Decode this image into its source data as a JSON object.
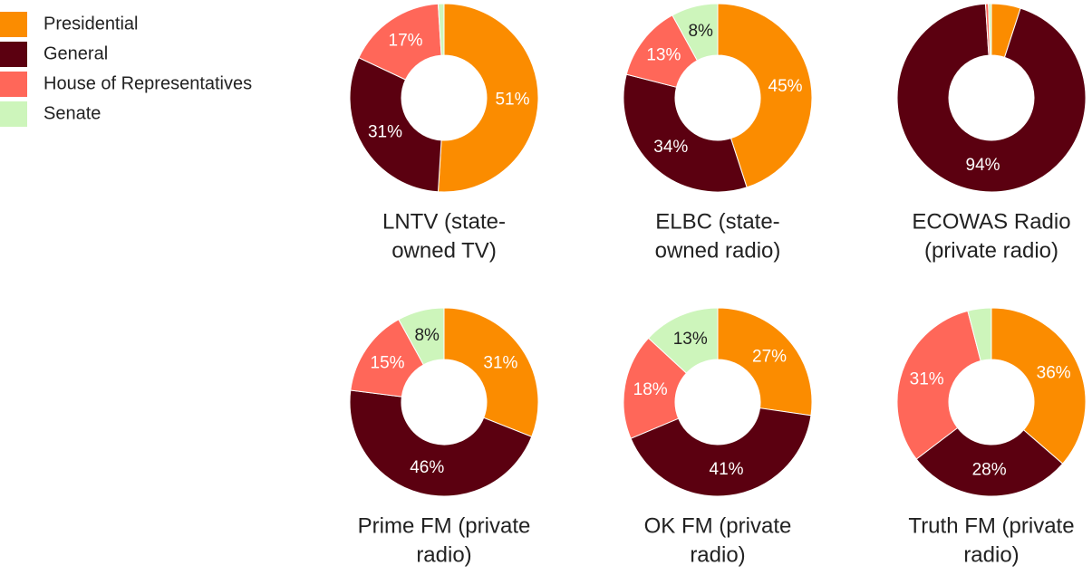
{
  "chart_data": [
    {
      "type": "donut",
      "title": [
        "LNTV (state-",
        "owned TV)"
      ],
      "categories": [
        "Presidential",
        "General",
        "House of Representatives",
        "Senate"
      ],
      "colors": [
        "#fb8c00",
        "#5b0010",
        "#ff6759",
        "#cdf5bb"
      ],
      "values": [
        51,
        31,
        17,
        1
      ],
      "value_labels": [
        "51%",
        "31%",
        "17%",
        null
      ]
    },
    {
      "type": "donut",
      "title": [
        "ELBC (state-",
        "owned radio)"
      ],
      "values": [
        45,
        34,
        13,
        8
      ],
      "value_labels": [
        "45%",
        "34%",
        "13%",
        "8%"
      ]
    },
    {
      "type": "donut",
      "title": [
        "ECOWAS Radio",
        "(private radio)"
      ],
      "values": [
        5,
        94,
        0.5,
        0.5
      ],
      "value_labels": [
        null,
        "94%",
        null,
        null
      ]
    },
    {
      "type": "donut",
      "title": [
        "Prime FM (private",
        "radio)"
      ],
      "values": [
        31,
        46,
        15,
        8
      ],
      "value_labels": [
        "31%",
        "46%",
        "15%",
        "8%"
      ]
    },
    {
      "type": "donut",
      "title": [
        "OK FM (private",
        "radio)"
      ],
      "values": [
        27,
        41,
        18,
        13
      ],
      "value_labels": [
        "27%",
        "41%",
        "18%",
        "13%"
      ]
    },
    {
      "type": "donut",
      "title": [
        "Truth FM (private",
        "radio)"
      ],
      "values": [
        36,
        28,
        31,
        4
      ],
      "value_labels": [
        "36%",
        "28%",
        "31%",
        null
      ]
    }
  ]
}
